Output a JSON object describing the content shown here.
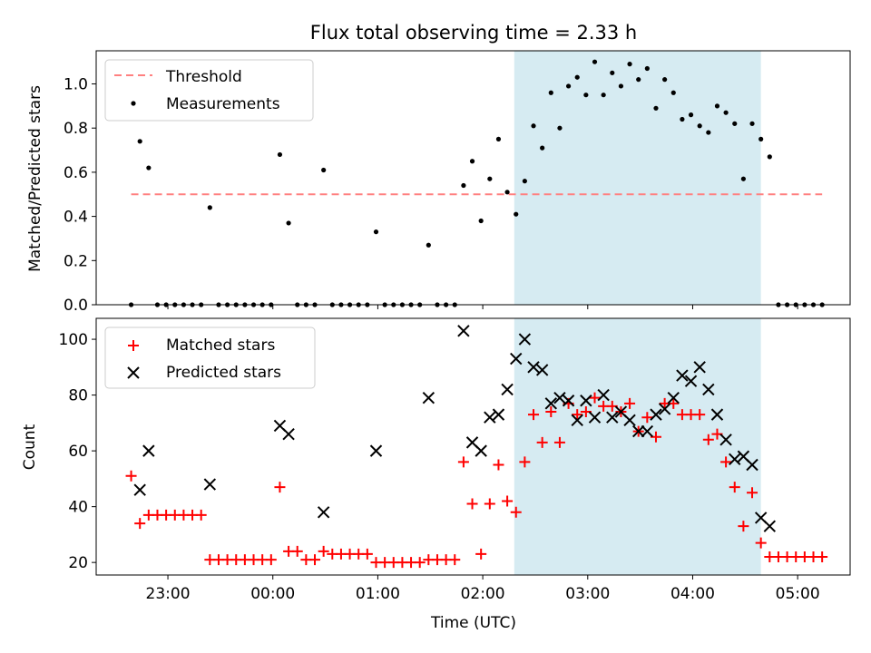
{
  "title": "Flux total observing time = 2.33 h",
  "xlabel": "Time (UTC)",
  "x_ticks": [
    "23:00",
    "00:00",
    "01:00",
    "02:00",
    "03:00",
    "04:00",
    "05:00"
  ],
  "colors": {
    "threshold": "#ff8080",
    "measurement": "#000000",
    "matched": "#ff0000",
    "predicted": "#000000",
    "window": "#add8e6"
  },
  "chart_data": [
    {
      "type": "scatter",
      "panel": "top",
      "ylabel": "Matched/Predicted stars",
      "xlim": [
        "22:19",
        "05:30"
      ],
      "ylim": [
        0,
        1.15
      ],
      "y_ticks": [
        "0.0",
        "0.2",
        "0.4",
        "0.6",
        "0.8",
        "1.0"
      ],
      "y_tick_values": [
        0,
        0.2,
        0.4,
        0.6,
        0.8,
        1.0
      ],
      "legend": {
        "position": "upper left",
        "entries": [
          "Threshold",
          "Measurements"
        ]
      },
      "highlight_window": {
        "start": "02:18",
        "end": "04:39"
      },
      "threshold": {
        "name": "Threshold",
        "y": 0.5,
        "x_start": "22:39",
        "x_end": "05:14"
      },
      "series": [
        {
          "name": "Measurements",
          "points": [
            [
              "22:39",
              0.0
            ],
            [
              "22:44",
              0.74
            ],
            [
              "22:49",
              0.62
            ],
            [
              "22:54",
              0.0
            ],
            [
              "22:59",
              0.0
            ],
            [
              "23:04",
              0.0
            ],
            [
              "23:09",
              0.0
            ],
            [
              "23:14",
              0.0
            ],
            [
              "23:19",
              0.0
            ],
            [
              "23:24",
              0.44
            ],
            [
              "23:29",
              0.0
            ],
            [
              "23:34",
              0.0
            ],
            [
              "23:39",
              0.0
            ],
            [
              "23:44",
              0.0
            ],
            [
              "23:49",
              0.0
            ],
            [
              "23:54",
              0.0
            ],
            [
              "23:59",
              0.0
            ],
            [
              "00:04",
              0.68
            ],
            [
              "00:09",
              0.37
            ],
            [
              "00:14",
              0.0
            ],
            [
              "00:19",
              0.0
            ],
            [
              "00:24",
              0.0
            ],
            [
              "00:29",
              0.61
            ],
            [
              "00:34",
              0.0
            ],
            [
              "00:39",
              0.0
            ],
            [
              "00:44",
              0.0
            ],
            [
              "00:49",
              0.0
            ],
            [
              "00:54",
              0.0
            ],
            [
              "00:59",
              0.33
            ],
            [
              "01:04",
              0.0
            ],
            [
              "01:09",
              0.0
            ],
            [
              "01:14",
              0.0
            ],
            [
              "01:19",
              0.0
            ],
            [
              "01:24",
              0.0
            ],
            [
              "01:29",
              0.27
            ],
            [
              "01:34",
              0.0
            ],
            [
              "01:39",
              0.0
            ],
            [
              "01:44",
              0.0
            ],
            [
              "01:49",
              0.54
            ],
            [
              "01:54",
              0.65
            ],
            [
              "01:59",
              0.38
            ],
            [
              "02:04",
              0.57
            ],
            [
              "02:09",
              0.75
            ],
            [
              "02:14",
              0.51
            ],
            [
              "02:19",
              0.41
            ],
            [
              "02:24",
              0.56
            ],
            [
              "02:29",
              0.81
            ],
            [
              "02:34",
              0.71
            ],
            [
              "02:39",
              0.96
            ],
            [
              "02:44",
              0.8
            ],
            [
              "02:49",
              0.99
            ],
            [
              "02:54",
              1.03
            ],
            [
              "02:59",
              0.95
            ],
            [
              "03:04",
              1.1
            ],
            [
              "03:09",
              0.95
            ],
            [
              "03:14",
              1.05
            ],
            [
              "03:19",
              0.99
            ],
            [
              "03:24",
              1.09
            ],
            [
              "03:29",
              1.02
            ],
            [
              "03:34",
              1.07
            ],
            [
              "03:39",
              0.89
            ],
            [
              "03:44",
              1.02
            ],
            [
              "03:49",
              0.96
            ],
            [
              "03:54",
              0.84
            ],
            [
              "03:59",
              0.86
            ],
            [
              "04:04",
              0.81
            ],
            [
              "04:09",
              0.78
            ],
            [
              "04:14",
              0.9
            ],
            [
              "04:19",
              0.87
            ],
            [
              "04:24",
              0.82
            ],
            [
              "04:29",
              0.57
            ],
            [
              "04:34",
              0.82
            ],
            [
              "04:39",
              0.75
            ],
            [
              "04:44",
              0.67
            ],
            [
              "04:49",
              0.0
            ],
            [
              "04:54",
              0.0
            ],
            [
              "04:59",
              0.0
            ],
            [
              "05:04",
              0.0
            ],
            [
              "05:09",
              0.0
            ],
            [
              "05:14",
              0.0
            ]
          ]
        }
      ]
    },
    {
      "type": "scatter",
      "panel": "bottom",
      "ylabel": "Count",
      "xlim": [
        "22:19",
        "05:30"
      ],
      "ylim": [
        15.5,
        107.5
      ],
      "y_ticks": [
        "20",
        "40",
        "60",
        "80",
        "100"
      ],
      "y_tick_values": [
        20,
        40,
        60,
        80,
        100
      ],
      "legend": {
        "position": "upper left",
        "entries": [
          "Matched stars",
          "Predicted stars"
        ]
      },
      "highlight_window": {
        "start": "02:18",
        "end": "04:39"
      },
      "series": [
        {
          "name": "Matched stars",
          "marker": "+",
          "points": [
            [
              "22:39",
              51
            ],
            [
              "22:44",
              34
            ],
            [
              "22:49",
              37
            ],
            [
              "22:54",
              37
            ],
            [
              "22:59",
              37
            ],
            [
              "23:04",
              37
            ],
            [
              "23:09",
              37
            ],
            [
              "23:14",
              37
            ],
            [
              "23:19",
              37
            ],
            [
              "23:24",
              21
            ],
            [
              "23:29",
              21
            ],
            [
              "23:34",
              21
            ],
            [
              "23:39",
              21
            ],
            [
              "23:44",
              21
            ],
            [
              "23:49",
              21
            ],
            [
              "23:54",
              21
            ],
            [
              "23:59",
              21
            ],
            [
              "00:04",
              47
            ],
            [
              "00:09",
              24
            ],
            [
              "00:14",
              24
            ],
            [
              "00:19",
              21
            ],
            [
              "00:24",
              21
            ],
            [
              "00:29",
              24
            ],
            [
              "00:34",
              23
            ],
            [
              "00:39",
              23
            ],
            [
              "00:44",
              23
            ],
            [
              "00:49",
              23
            ],
            [
              "00:54",
              23
            ],
            [
              "00:59",
              20
            ],
            [
              "01:04",
              20
            ],
            [
              "01:09",
              20
            ],
            [
              "01:14",
              20
            ],
            [
              "01:19",
              20
            ],
            [
              "01:24",
              20
            ],
            [
              "01:29",
              21
            ],
            [
              "01:34",
              21
            ],
            [
              "01:39",
              21
            ],
            [
              "01:44",
              21
            ],
            [
              "01:49",
              56
            ],
            [
              "01:54",
              41
            ],
            [
              "01:59",
              23
            ],
            [
              "02:04",
              41
            ],
            [
              "02:09",
              55
            ],
            [
              "02:14",
              42
            ],
            [
              "02:19",
              38
            ],
            [
              "02:24",
              56
            ],
            [
              "02:29",
              73
            ],
            [
              "02:34",
              63
            ],
            [
              "02:39",
              74
            ],
            [
              "02:44",
              63
            ],
            [
              "02:49",
              77
            ],
            [
              "02:54",
              73
            ],
            [
              "02:59",
              74
            ],
            [
              "03:04",
              79
            ],
            [
              "03:09",
              76
            ],
            [
              "03:14",
              76
            ],
            [
              "03:19",
              74
            ],
            [
              "03:24",
              77
            ],
            [
              "03:29",
              67
            ],
            [
              "03:34",
              72
            ],
            [
              "03:39",
              65
            ],
            [
              "03:44",
              77
            ],
            [
              "03:49",
              77
            ],
            [
              "03:54",
              73
            ],
            [
              "03:59",
              73
            ],
            [
              "04:04",
              73
            ],
            [
              "04:09",
              64
            ],
            [
              "04:14",
              66
            ],
            [
              "04:19",
              56
            ],
            [
              "04:24",
              47
            ],
            [
              "04:29",
              33
            ],
            [
              "04:34",
              45
            ],
            [
              "04:39",
              27
            ],
            [
              "04:44",
              22
            ],
            [
              "04:49",
              22
            ],
            [
              "04:54",
              22
            ],
            [
              "04:59",
              22
            ],
            [
              "05:04",
              22
            ],
            [
              "05:09",
              22
            ],
            [
              "05:14",
              22
            ]
          ]
        },
        {
          "name": "Predicted stars",
          "marker": "x",
          "points": [
            [
              "22:44",
              46
            ],
            [
              "22:49",
              60
            ],
            [
              "23:24",
              48
            ],
            [
              "00:04",
              69
            ],
            [
              "00:09",
              66
            ],
            [
              "00:29",
              38
            ],
            [
              "00:59",
              60
            ],
            [
              "01:29",
              79
            ],
            [
              "01:49",
              103
            ],
            [
              "01:54",
              63
            ],
            [
              "01:59",
              60
            ],
            [
              "02:04",
              72
            ],
            [
              "02:09",
              73
            ],
            [
              "02:14",
              82
            ],
            [
              "02:19",
              93
            ],
            [
              "02:24",
              100
            ],
            [
              "02:29",
              90
            ],
            [
              "02:34",
              89
            ],
            [
              "02:39",
              77
            ],
            [
              "02:44",
              79
            ],
            [
              "02:49",
              78
            ],
            [
              "02:54",
              71
            ],
            [
              "02:59",
              78
            ],
            [
              "03:04",
              72
            ],
            [
              "03:09",
              80
            ],
            [
              "03:14",
              72
            ],
            [
              "03:19",
              74
            ],
            [
              "03:24",
              71
            ],
            [
              "03:29",
              67
            ],
            [
              "03:34",
              67
            ],
            [
              "03:39",
              73
            ],
            [
              "03:44",
              75
            ],
            [
              "03:49",
              79
            ],
            [
              "03:54",
              87
            ],
            [
              "03:59",
              85
            ],
            [
              "04:04",
              90
            ],
            [
              "04:09",
              82
            ],
            [
              "04:14",
              73
            ],
            [
              "04:19",
              64
            ],
            [
              "04:24",
              57
            ],
            [
              "04:29",
              58
            ],
            [
              "04:34",
              55
            ],
            [
              "04:39",
              36
            ],
            [
              "04:44",
              33
            ]
          ]
        }
      ]
    }
  ]
}
